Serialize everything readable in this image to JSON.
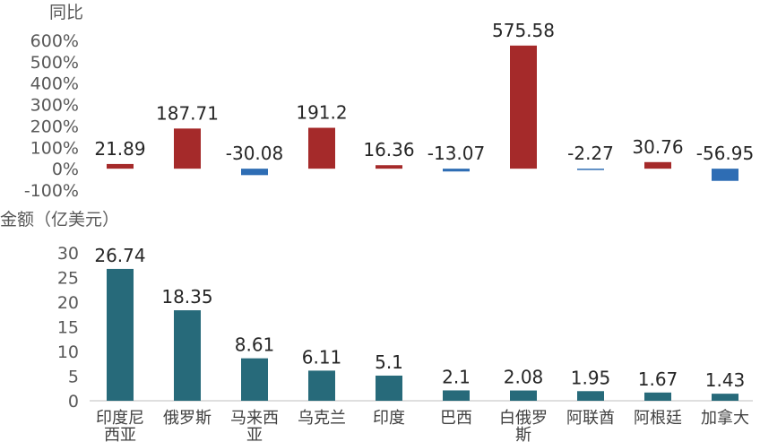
{
  "chart_data": [
    {
      "type": "bar",
      "ylabel": "同比",
      "categories": [
        "印度尼西亚",
        "俄罗斯",
        "马来西亚",
        "乌克兰",
        "印度",
        "巴西",
        "白俄罗斯",
        "阿联酋",
        "阿根廷",
        "加拿大"
      ],
      "values": [
        21.89,
        187.71,
        -30.08,
        191.2,
        16.36,
        -13.07,
        575.58,
        -2.27,
        30.76,
        -56.95
      ],
      "data_labels": [
        "21.89",
        "187.71",
        "-30.08",
        "191.2",
        "16.36",
        "-13.07",
        "575.58",
        "-2.27",
        "30.76",
        "-56.95"
      ],
      "ylim": [
        -100,
        600
      ],
      "yticks": [
        "600%",
        "500%",
        "400%",
        "300%",
        "200%",
        "100%",
        "0%",
        "-100%"
      ],
      "ytick_values": [
        600,
        500,
        400,
        300,
        200,
        100,
        0,
        -100
      ],
      "grid": false,
      "colors": {
        "positive": "#a52a2a",
        "negative": "#2e6db4"
      }
    },
    {
      "type": "bar",
      "ylabel": "金额（亿美元）",
      "categories": [
        "印度尼西亚",
        "俄罗斯",
        "马来西亚",
        "乌克兰",
        "印度",
        "巴西",
        "白俄罗斯",
        "阿联酋",
        "阿根廷",
        "加拿大"
      ],
      "category_lines": [
        [
          "印度尼",
          "西亚"
        ],
        [
          "俄罗斯"
        ],
        [
          "马来西",
          "亚"
        ],
        [
          "乌克兰"
        ],
        [
          "印度"
        ],
        [
          "巴西"
        ],
        [
          "白俄罗",
          "斯"
        ],
        [
          "阿联酋"
        ],
        [
          "阿根廷"
        ],
        [
          "加拿大"
        ]
      ],
      "values": [
        26.74,
        18.35,
        8.61,
        6.11,
        5.1,
        2.1,
        2.08,
        1.95,
        1.67,
        1.43
      ],
      "data_labels": [
        "26.74",
        "18.35",
        "8.61",
        "6.11",
        "5.1",
        "2.1",
        "2.08",
        "1.95",
        "1.67",
        "1.43"
      ],
      "ylim": [
        0,
        30
      ],
      "yticks": [
        "30",
        "25",
        "20",
        "15",
        "10",
        "5",
        "0"
      ],
      "ytick_values": [
        30,
        25,
        20,
        15,
        10,
        5,
        0
      ],
      "grid": false,
      "colors": {
        "bar": "#276a7a"
      }
    }
  ]
}
